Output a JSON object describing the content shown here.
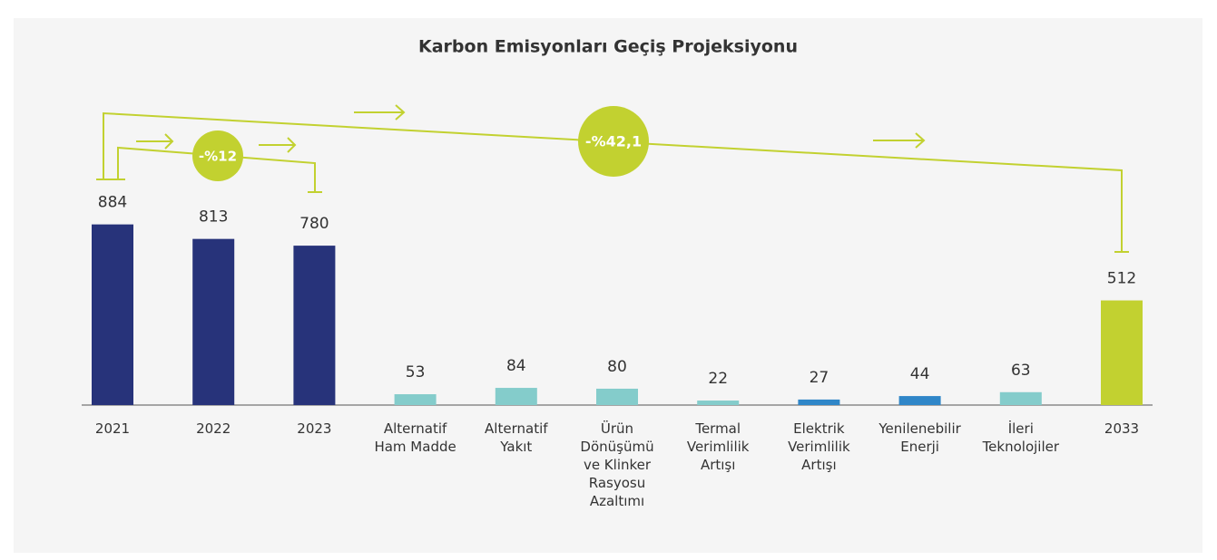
{
  "chart_data": {
    "type": "bar",
    "title": "Karbon Emisyonları Geçiş Projeksiyonu",
    "categories": [
      "2021",
      "2022",
      "2023",
      "Alternatif\nHam Madde",
      "Alternatif\nYakıt",
      "Ürün\nDönüşümü\nve Klinker\nRasyosu\nAzaltımı",
      "Termal\nVerimlilik\nArtışı",
      "Elektrik\nVerimlilik\nArtışı",
      "Yenilenebilir\nEnerji",
      "İleri\nTeknolojiler",
      "2033"
    ],
    "values": [
      884,
      813,
      780,
      53,
      84,
      80,
      22,
      27,
      44,
      63,
      512
    ],
    "colors": [
      "#27337a",
      "#27337a",
      "#27337a",
      "#84cccb",
      "#84cccb",
      "#84cccb",
      "#84cccb",
      "#2f86c8",
      "#2f86c8",
      "#84cccb",
      "#c2d130"
    ],
    "ylim": [
      0,
      980
    ],
    "annotations": [
      "-%12",
      "-%42,1"
    ]
  }
}
